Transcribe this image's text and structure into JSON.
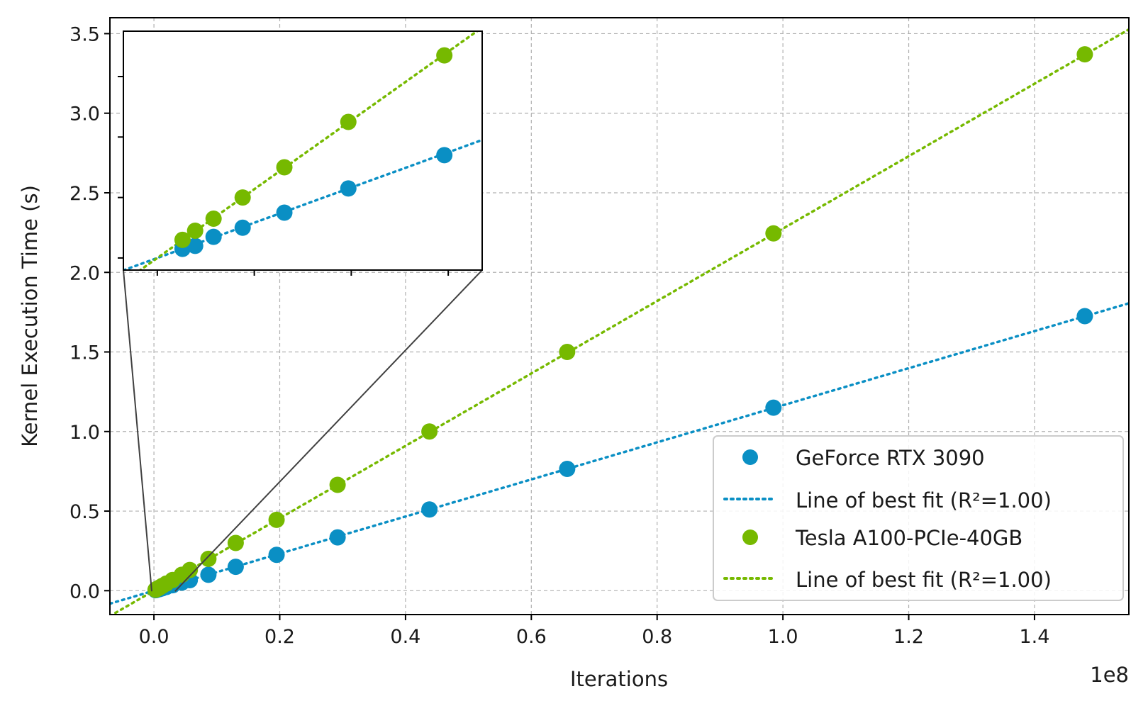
{
  "chart_data": {
    "type": "scatter",
    "title": "",
    "xlabel": "Iterations",
    "ylabel": "Kernel Execution Time (s)",
    "x_offset_label": "1e8",
    "xlim": [
      -0.07,
      1.55
    ],
    "ylim": [
      -0.15,
      3.6
    ],
    "x_ticks": [
      0.0,
      0.2,
      0.4,
      0.6,
      0.8,
      1.0,
      1.2,
      1.4
    ],
    "x_tick_labels": [
      "0.0",
      "0.2",
      "0.4",
      "0.6",
      "0.8",
      "1.0",
      "1.2",
      "1.4"
    ],
    "y_ticks": [
      0.0,
      0.5,
      1.0,
      1.5,
      2.0,
      2.5,
      3.0,
      3.5
    ],
    "y_tick_labels": [
      "0.0",
      "0.5",
      "1.0",
      "1.5",
      "2.0",
      "2.5",
      "3.0",
      "3.5"
    ],
    "grid": true,
    "legend_position": "lower-right",
    "series": [
      {
        "name": "GeForce RTX 3090",
        "kind": "points",
        "color": "#0a8fc4",
        "x": [
          0.0026,
          0.0039,
          0.0058,
          0.0088,
          0.0131,
          0.0197,
          0.0296,
          0.0443,
          0.057,
          0.0866,
          0.13,
          0.195,
          0.292,
          0.438,
          0.657,
          0.985,
          1.48
        ],
        "y": [
          0.003,
          0.004,
          0.007,
          0.01,
          0.015,
          0.023,
          0.034,
          0.051,
          0.066,
          0.1,
          0.15,
          0.225,
          0.335,
          0.51,
          0.765,
          1.15,
          1.725
        ]
      },
      {
        "name": "Line of best fit (R²=1.00)",
        "kind": "fit-line",
        "color": "#0a8fc4",
        "slope": 1.165,
        "intercept": 0.0
      },
      {
        "name": "Tesla A100-PCIe-40GB",
        "kind": "points",
        "color": "#76b900",
        "x": [
          0.0026,
          0.0039,
          0.0058,
          0.0088,
          0.0131,
          0.0197,
          0.0296,
          0.0443,
          0.057,
          0.0866,
          0.13,
          0.195,
          0.292,
          0.438,
          0.657,
          0.985,
          1.48
        ],
        "y": [
          0.006,
          0.009,
          0.013,
          0.02,
          0.03,
          0.045,
          0.067,
          0.1,
          0.13,
          0.2,
          0.3,
          0.445,
          0.665,
          1.0,
          1.5,
          2.245,
          3.37
        ]
      },
      {
        "name": "Line of best fit (R²=1.00)",
        "kind": "fit-line",
        "color": "#76b900",
        "slope": 2.275,
        "intercept": 0.0
      }
    ],
    "inset": {
      "xlim": [
        -0.0035,
        0.0335
      ],
      "ylim": [
        -0.004,
        0.075
      ],
      "x_ticks": [
        0.0,
        0.01,
        0.02,
        0.03
      ],
      "y_ticks": [
        0.0,
        0.02,
        0.04,
        0.06
      ],
      "tick_labels_visible": false
    },
    "legend": {
      "entries": [
        {
          "label": "GeForce RTX 3090",
          "marker": "dot",
          "color": "#0a8fc4"
        },
        {
          "label": "Line of best fit (R²=1.00)",
          "marker": "dotted-line",
          "color": "#0a8fc4"
        },
        {
          "label": "Tesla A100-PCIe-40GB",
          "marker": "dot",
          "color": "#76b900"
        },
        {
          "label": "Line of best fit (R²=1.00)",
          "marker": "dotted-line",
          "color": "#76b900"
        }
      ]
    }
  }
}
